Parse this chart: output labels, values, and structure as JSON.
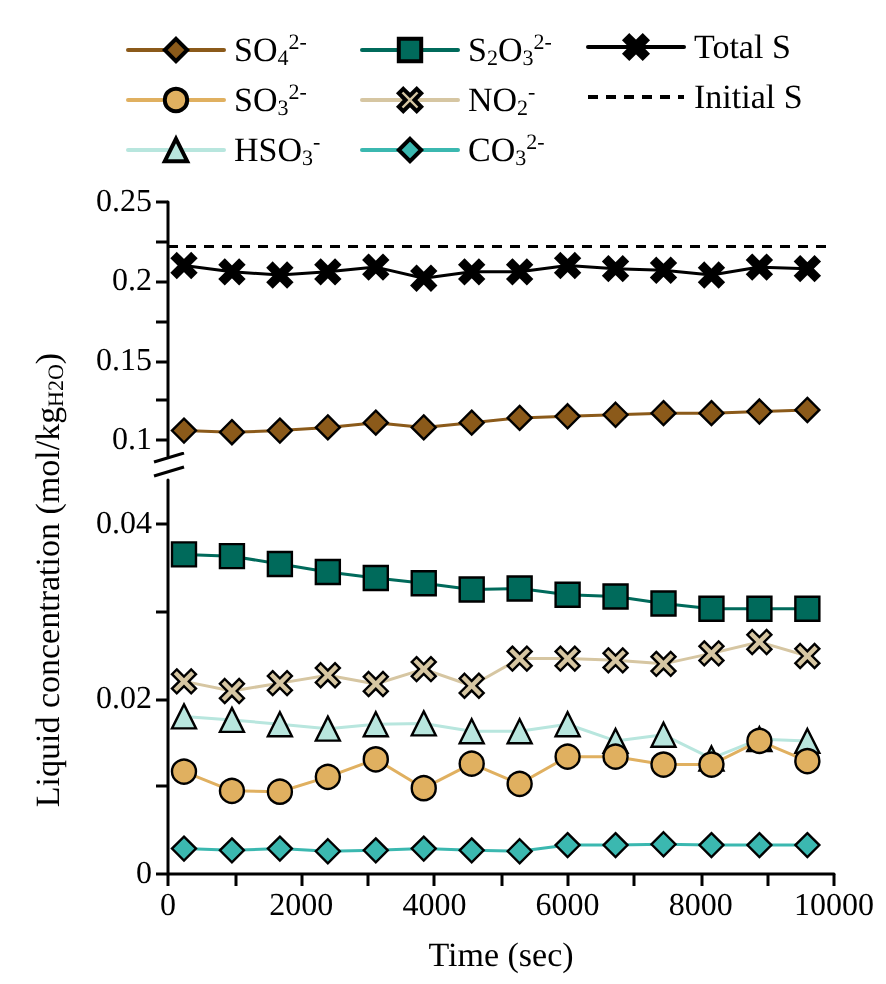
{
  "chart_data": [
    {
      "type": "line",
      "x": [
        240,
        960,
        1680,
        2400,
        3120,
        3840,
        4560,
        5280,
        6000,
        6720,
        7440,
        8160,
        8880,
        9600
      ],
      "series": [
        {
          "name": "SO$_{4}$$^{2-}$",
          "color": "#8b5a1a",
          "marker": "diamond",
          "values": [
            0.106,
            0.105,
            0.106,
            0.108,
            0.111,
            0.108,
            0.111,
            0.114,
            0.115,
            0.116,
            0.117,
            0.117,
            0.118,
            0.119
          ]
        },
        {
          "name": "Total S",
          "color": "#000000",
          "marker": "cross",
          "values": [
            0.21,
            0.206,
            0.204,
            0.206,
            0.209,
            0.202,
            0.206,
            0.206,
            0.21,
            0.208,
            0.207,
            0.204,
            0.209,
            0.208
          ]
        }
      ],
      "ref_lines": [
        {
          "axis": "y",
          "value": 0.222,
          "label": "Initial S",
          "color": "#000000",
          "line_style": "dashed"
        }
      ],
      "xlim": [
        0,
        10000
      ],
      "ylim": [
        0.09,
        0.25
      ],
      "yticks": [
        0.1,
        {
          "value": 0.125,
          "label": null
        },
        0.15,
        {
          "value": 0.175,
          "label": null
        },
        0.2,
        {
          "value": 0.225,
          "label": null
        },
        0.25
      ],
      "tick_labels": "y",
      "legend": "top",
      "grid": false
    },
    {
      "type": "line",
      "x": [
        240,
        960,
        1680,
        2400,
        3120,
        3840,
        4560,
        5280,
        6000,
        6720,
        7440,
        8160,
        8880,
        9600
      ],
      "xlabel": "Time (sec)",
      "ylabel": "Liquid concentration (mol/kg$_{H2O}$)",
      "series": [
        {
          "name": "SO$_{3}$$^{2-}$",
          "color": "#e0b060",
          "marker": "circle",
          "values": [
            0.0117,
            0.0095,
            0.0094,
            0.0111,
            0.0131,
            0.0098,
            0.0126,
            0.0103,
            0.0134,
            0.0134,
            0.0125,
            0.0125,
            0.0152,
            0.0129
          ]
        },
        {
          "name": "S$_{2}$O$_{3}$$^{2-}$",
          "color": "#006a5b",
          "marker": "square",
          "values": [
            0.0365,
            0.0363,
            0.0354,
            0.0345,
            0.0338,
            0.0332,
            0.0325,
            0.0326,
            0.0319,
            0.0317,
            0.0309,
            0.0303,
            0.0303,
            0.0303
          ]
        },
        {
          "name": "NO$_{2}$$^{-}$",
          "color": "#d6c6a2",
          "marker": "cross",
          "values": [
            0.022,
            0.0209,
            0.0218,
            0.0227,
            0.0217,
            0.0234,
            0.0215,
            0.0246,
            0.0246,
            0.0244,
            0.024,
            0.0252,
            0.0265,
            0.0249
          ]
        },
        {
          "name": "HSO$_{3}$$^{-}$",
          "color": "#b8e6de",
          "marker": "triangle",
          "values": [
            0.018,
            0.0176,
            0.0171,
            0.0166,
            0.0171,
            0.0172,
            0.0163,
            0.0163,
            0.0171,
            0.0152,
            0.0159,
            0.0132,
            0.0154,
            0.0152
          ]
        },
        {
          "name": "CO$_{3}$$^{2-}$",
          "color": "#3bb8b0",
          "marker": "diamond",
          "values": [
            0.0029,
            0.0027,
            0.0029,
            0.0026,
            0.0027,
            0.0029,
            0.0027,
            0.0026,
            0.0033,
            0.0033,
            0.0034,
            0.0033,
            0.0033,
            0.0033
          ]
        }
      ],
      "xlim": [
        0,
        10000
      ],
      "ylim": [
        0,
        0.045
      ],
      "xticks": [
        0,
        {
          "value": 1000,
          "label": null
        },
        2000,
        {
          "value": 3000,
          "label": null
        },
        4000,
        {
          "value": 5000,
          "label": null
        },
        6000,
        {
          "value": 7000,
          "label": null
        },
        8000,
        {
          "value": 9000,
          "label": null
        },
        10000
      ],
      "yticks": [
        0,
        {
          "value": 0.01,
          "label": null
        },
        0.02,
        {
          "value": 0.03,
          "label": null
        },
        0.04
      ],
      "legend": "top",
      "grid": false
    }
  ]
}
